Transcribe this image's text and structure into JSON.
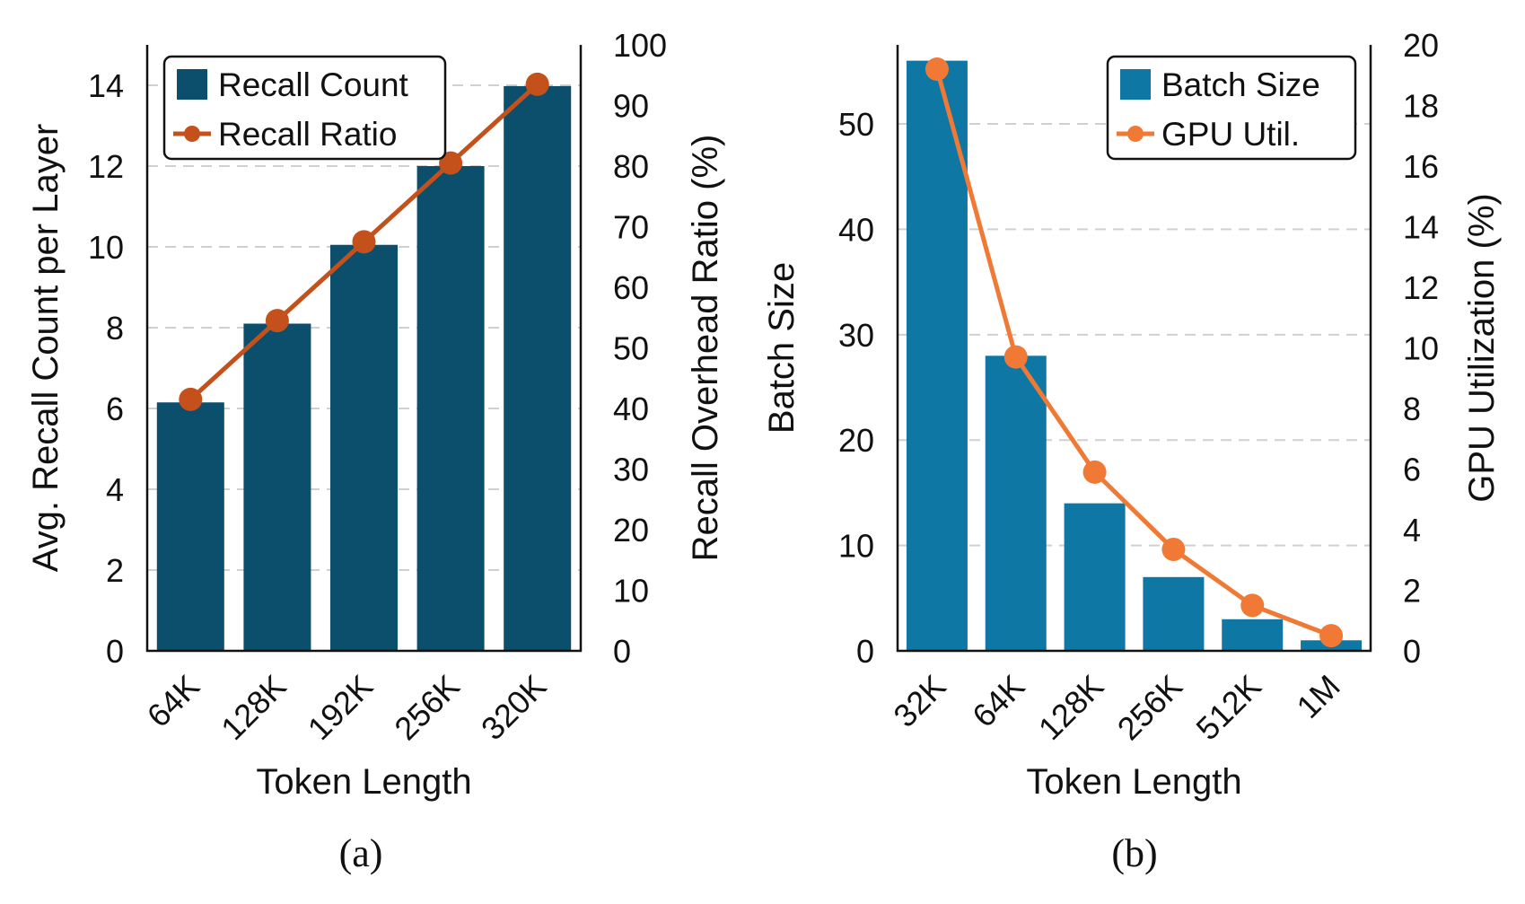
{
  "chart_data": [
    {
      "type": "bar",
      "panel": "(a)",
      "categories": [
        "64K",
        "128K",
        "192K",
        "256K",
        "320K"
      ],
      "series": [
        {
          "name": "Recall Count",
          "axis": "left",
          "values": [
            6.15,
            8.1,
            10.05,
            12.0,
            13.98
          ],
          "color": "#0b4f6c"
        },
        {
          "name": "Recall Ratio",
          "axis": "right",
          "type": "line",
          "values": [
            41.5,
            54.5,
            67.5,
            80.5,
            93.5
          ],
          "color": "#c4501b"
        }
      ],
      "xlabel": "Token Length",
      "ylabel": "Avg. Recall Count per Layer",
      "y2label": "Recall Overhead Ratio (%)",
      "ylim": [
        0,
        15
      ],
      "yticks": [
        0,
        2,
        4,
        6,
        8,
        10,
        12,
        14
      ],
      "y2lim": [
        0,
        100
      ],
      "y2ticks": [
        0,
        10,
        20,
        30,
        40,
        50,
        60,
        70,
        80,
        90,
        100
      ],
      "grid": true,
      "legend": "top-left"
    },
    {
      "type": "bar",
      "panel": "(b)",
      "categories": [
        "32K",
        "64K",
        "128K",
        "256K",
        "512K",
        "1M"
      ],
      "series": [
        {
          "name": "Batch Size",
          "axis": "left",
          "values": [
            56,
            28,
            14,
            7,
            3,
            1
          ],
          "color": "#0e77a3"
        },
        {
          "name": "GPU Util.",
          "axis": "right",
          "type": "line",
          "values": [
            19.2,
            9.7,
            5.9,
            3.35,
            1.5,
            0.5
          ],
          "color": "#f07a35"
        }
      ],
      "xlabel": "Token Length",
      "ylabel": "Batch Size",
      "y2label": "GPU Utilization (%)",
      "ylim": [
        0,
        57.5
      ],
      "yticks": [
        0,
        10,
        20,
        30,
        40,
        50
      ],
      "y2lim": [
        0,
        20
      ],
      "y2ticks": [
        0,
        2,
        4,
        6,
        8,
        10,
        12,
        14,
        16,
        18,
        20
      ],
      "grid": true,
      "legend": "top-right"
    }
  ]
}
